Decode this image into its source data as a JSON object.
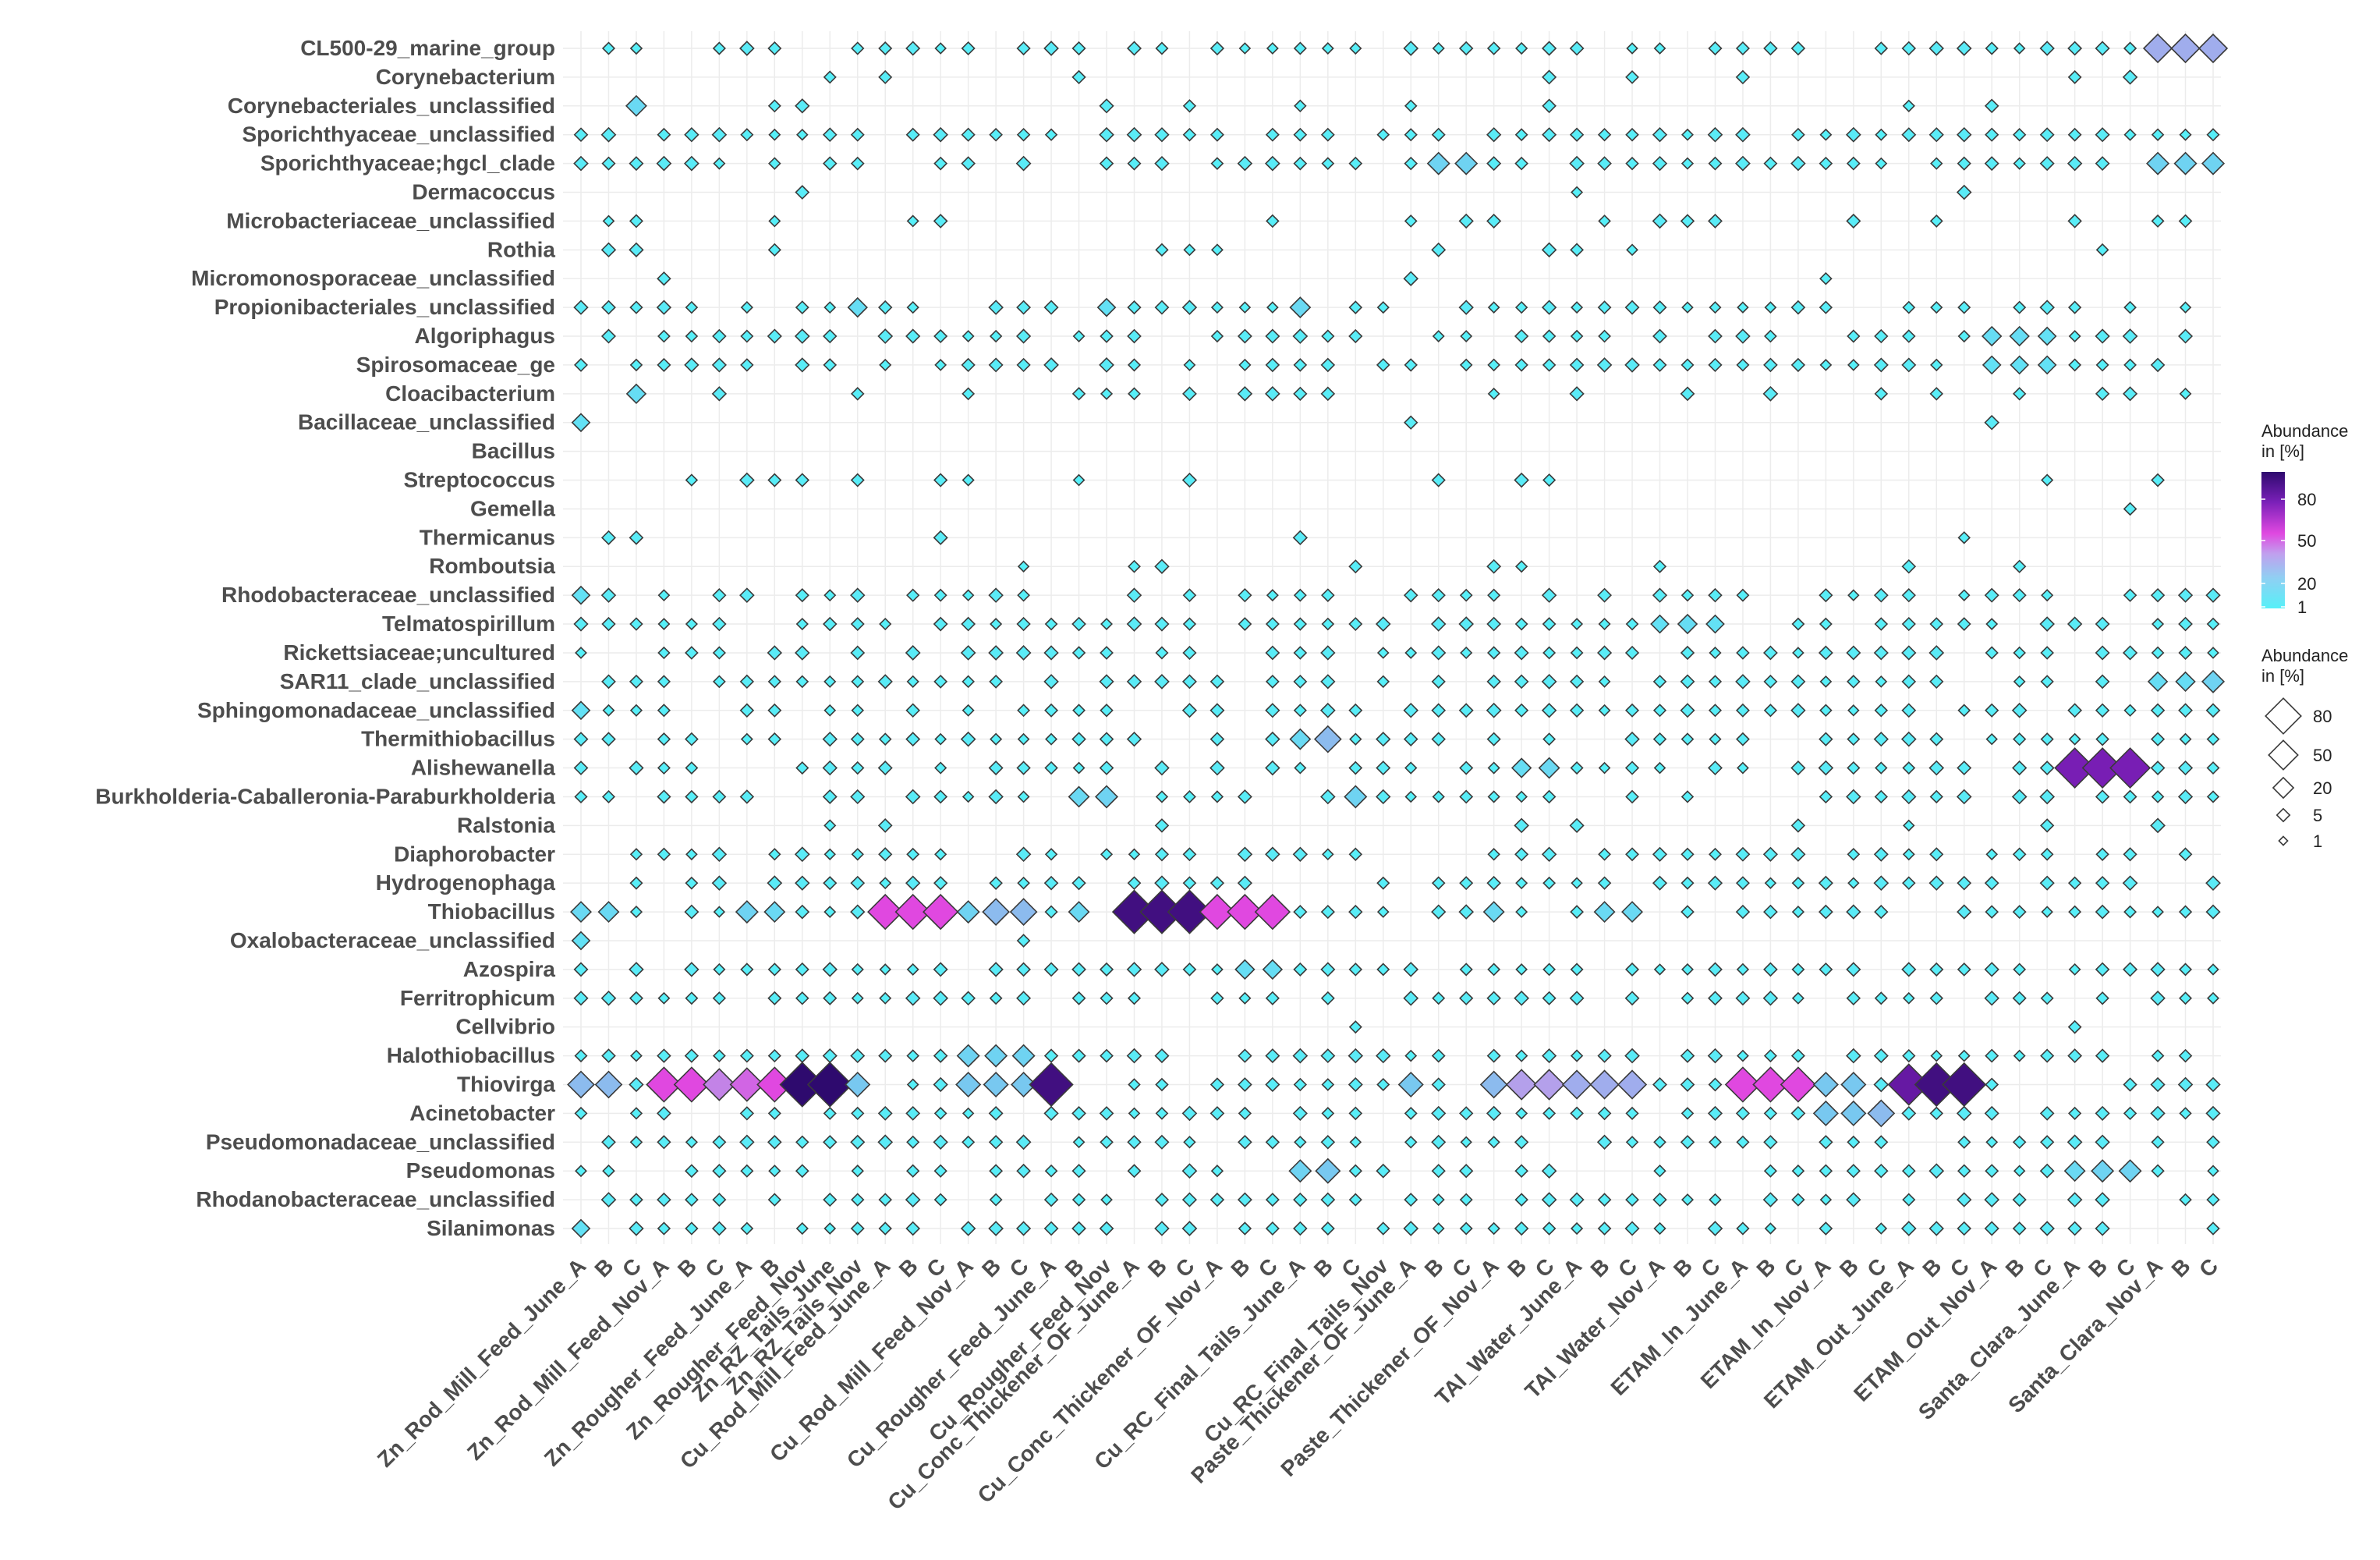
{
  "chart_data": {
    "type": "bubble-heatmap",
    "title": "",
    "xlabel": "",
    "ylabel": "",
    "taxa": [
      "CL500-29_marine_group",
      "Corynebacterium",
      "Corynebacteriales_unclassified",
      "Sporichthyaceae_unclassified",
      "Sporichthyaceae;hgcl_clade",
      "Dermacoccus",
      "Microbacteriaceae_unclassified",
      "Rothia",
      "Micromonosporaceae_unclassified",
      "Propionibacteriales_unclassified",
      "Algoriphagus",
      "Spirosomaceae_ge",
      "Cloacibacterium",
      "Bacillaceae_unclassified",
      "Bacillus",
      "Streptococcus",
      "Gemella",
      "Thermicanus",
      "Romboutsia",
      "Rhodobacteraceae_unclassified",
      "Telmatospirillum",
      "Rickettsiaceae;uncultured",
      "SAR11_clade_unclassified",
      "Sphingomonadaceae_unclassified",
      "Thermithiobacillus",
      "Alishewanella",
      "Burkholderia-Caballeronia-Paraburkholderia",
      "Ralstonia",
      "Diaphorobacter",
      "Hydrogenophaga",
      "Thiobacillus",
      "Oxalobacteraceae_unclassified",
      "Azospira",
      "Ferritrophicum",
      "Cellvibrio",
      "Halothiobacillus",
      "Thiovirga",
      "Acinetobacter",
      "Pseudomonadaceae_unclassified",
      "Pseudomonas",
      "Rhodanobacteraceae_unclassified",
      "Silanimonas"
    ],
    "x_tick_labels": [
      "Zn_Rod_Mill_Feed_June_A",
      "B",
      "C",
      "Zn_Rod_Mill_Feed_Nov_A",
      "B",
      "C",
      "Zn_Rougher_Feed_June_A",
      "B",
      "Zn_Rougher_Feed_Nov",
      "Zn_RZ_Tails_June",
      "Zn_RZ_Tails_Nov",
      "Cu_Rod_Mill_Feed_June_A",
      "B",
      "C",
      "Cu_Rod_Mill_Feed_Nov_A",
      "B",
      "C",
      "Cu_Rougher_Feed_June_A",
      "B",
      "Cu_Rougher_Feed_Nov",
      "Cu_Conc_Thickener_OF_June_A",
      "B",
      "C",
      "Cu_Conc_Thickener_OF_Nov_A",
      "B",
      "C",
      "Cu_RC_Final_Tails_June_A",
      "B",
      "C",
      "Cu_RC_Final_Tails_Nov",
      "Paste_Thickener_OF_June_A",
      "B",
      "C",
      "Paste_Thickener_OF_Nov_A",
      "B",
      "C",
      "TAI_Water_June_A",
      "B",
      "C",
      "TAI_Water_Nov_A",
      "B",
      "C",
      "ETAM_In_June_A",
      "B",
      "C",
      "ETAM_In_Nov_A",
      "B",
      "C",
      "ETAM_Out_June_A",
      "B",
      "C",
      "ETAM_Out_Nov_A",
      "B",
      "C",
      "Santa_Clara_June_A",
      "B",
      "C",
      "Santa_Clara_Nov_A",
      "B",
      "C"
    ],
    "highlights": [
      {
        "taxon": "CL500-29_marine_group",
        "sample": 57,
        "abundance": 30
      },
      {
        "taxon": "CL500-29_marine_group",
        "sample": 58,
        "abundance": 30
      },
      {
        "taxon": "CL500-29_marine_group",
        "sample": 59,
        "abundance": 30
      },
      {
        "taxon": "Sporichthyaceae;hgcl_clade",
        "sample": 31,
        "abundance": 15
      },
      {
        "taxon": "Sporichthyaceae;hgcl_clade",
        "sample": 32,
        "abundance": 15
      },
      {
        "taxon": "Sporichthyaceae;hgcl_clade",
        "sample": 57,
        "abundance": 15
      },
      {
        "taxon": "Sporichthyaceae;hgcl_clade",
        "sample": 58,
        "abundance": 15
      },
      {
        "taxon": "Sporichthyaceae;hgcl_clade",
        "sample": 59,
        "abundance": 15
      },
      {
        "taxon": "Corynebacteriales_unclassified",
        "sample": 2,
        "abundance": 12
      },
      {
        "taxon": "Propionibacteriales_unclassified",
        "sample": 10,
        "abundance": 10
      },
      {
        "taxon": "Propionibacteriales_unclassified",
        "sample": 19,
        "abundance": 8
      },
      {
        "taxon": "Propionibacteriales_unclassified",
        "sample": 26,
        "abundance": 12
      },
      {
        "taxon": "Algoriphagus",
        "sample": 51,
        "abundance": 10
      },
      {
        "taxon": "Algoriphagus",
        "sample": 52,
        "abundance": 10
      },
      {
        "taxon": "Algoriphagus",
        "sample": 53,
        "abundance": 8
      },
      {
        "taxon": "Spirosomaceae_ge",
        "sample": 51,
        "abundance": 8
      },
      {
        "taxon": "Spirosomaceae_ge",
        "sample": 52,
        "abundance": 8
      },
      {
        "taxon": "Spirosomaceae_ge",
        "sample": 53,
        "abundance": 8
      },
      {
        "taxon": "Cloacibacterium",
        "sample": 2,
        "abundance": 10
      },
      {
        "taxon": "Telmatospirillum",
        "sample": 39,
        "abundance": 8
      },
      {
        "taxon": "Telmatospirillum",
        "sample": 40,
        "abundance": 10
      },
      {
        "taxon": "Telmatospirillum",
        "sample": 41,
        "abundance": 8
      },
      {
        "taxon": "SAR11_clade_unclassified",
        "sample": 57,
        "abundance": 10
      },
      {
        "taxon": "SAR11_clade_unclassified",
        "sample": 58,
        "abundance": 10
      },
      {
        "taxon": "SAR11_clade_unclassified",
        "sample": 59,
        "abundance": 15
      },
      {
        "taxon": "Thermithiobacillus",
        "sample": 26,
        "abundance": 12
      },
      {
        "taxon": "Thermithiobacillus",
        "sample": 27,
        "abundance": 25
      },
      {
        "taxon": "Alishewanella",
        "sample": 54,
        "abundance": 70
      },
      {
        "taxon": "Alishewanella",
        "sample": 55,
        "abundance": 70
      },
      {
        "taxon": "Alishewanella",
        "sample": 56,
        "abundance": 70
      },
      {
        "taxon": "Alishewanella",
        "sample": 34,
        "abundance": 10
      },
      {
        "taxon": "Alishewanella",
        "sample": 35,
        "abundance": 12
      },
      {
        "taxon": "Burkholderia-Caballeronia-Paraburkholderia",
        "sample": 18,
        "abundance": 12
      },
      {
        "taxon": "Burkholderia-Caballeronia-Paraburkholderia",
        "sample": 19,
        "abundance": 15
      },
      {
        "taxon": "Burkholderia-Caballeronia-Paraburkholderia",
        "sample": 28,
        "abundance": 15
      },
      {
        "taxon": "Thiobacillus",
        "sample": 0,
        "abundance": 12
      },
      {
        "taxon": "Thiobacillus",
        "sample": 1,
        "abundance": 12
      },
      {
        "taxon": "Thiobacillus",
        "sample": 6,
        "abundance": 15
      },
      {
        "taxon": "Thiobacillus",
        "sample": 7,
        "abundance": 12
      },
      {
        "taxon": "Thiobacillus",
        "sample": 11,
        "abundance": 50
      },
      {
        "taxon": "Thiobacillus",
        "sample": 12,
        "abundance": 50
      },
      {
        "taxon": "Thiobacillus",
        "sample": 13,
        "abundance": 50
      },
      {
        "taxon": "Thiobacillus",
        "sample": 14,
        "abundance": 15
      },
      {
        "taxon": "Thiobacillus",
        "sample": 15,
        "abundance": 25
      },
      {
        "taxon": "Thiobacillus",
        "sample": 16,
        "abundance": 25
      },
      {
        "taxon": "Thiobacillus",
        "sample": 18,
        "abundance": 12
      },
      {
        "taxon": "Thiobacillus",
        "sample": 20,
        "abundance": 85
      },
      {
        "taxon": "Thiobacillus",
        "sample": 21,
        "abundance": 85
      },
      {
        "taxon": "Thiobacillus",
        "sample": 22,
        "abundance": 85
      },
      {
        "taxon": "Thiobacillus",
        "sample": 23,
        "abundance": 50
      },
      {
        "taxon": "Thiobacillus",
        "sample": 24,
        "abundance": 50
      },
      {
        "taxon": "Thiobacillus",
        "sample": 25,
        "abundance": 50
      },
      {
        "taxon": "Thiobacillus",
        "sample": 33,
        "abundance": 12
      },
      {
        "taxon": "Thiobacillus",
        "sample": 37,
        "abundance": 12
      },
      {
        "taxon": "Thiobacillus",
        "sample": 38,
        "abundance": 12
      },
      {
        "taxon": "Azospira",
        "sample": 24,
        "abundance": 10
      },
      {
        "taxon": "Azospira",
        "sample": 25,
        "abundance": 10
      },
      {
        "taxon": "Halothiobacillus",
        "sample": 14,
        "abundance": 15
      },
      {
        "taxon": "Halothiobacillus",
        "sample": 15,
        "abundance": 15
      },
      {
        "taxon": "Halothiobacillus",
        "sample": 16,
        "abundance": 15
      },
      {
        "taxon": "Thiovirga",
        "sample": 0,
        "abundance": 25
      },
      {
        "taxon": "Thiovirga",
        "sample": 1,
        "abundance": 25
      },
      {
        "taxon": "Thiovirga",
        "sample": 3,
        "abundance": 50
      },
      {
        "taxon": "Thiovirga",
        "sample": 4,
        "abundance": 50
      },
      {
        "taxon": "Thiovirga",
        "sample": 5,
        "abundance": 40
      },
      {
        "taxon": "Thiovirga",
        "sample": 6,
        "abundance": 45
      },
      {
        "taxon": "Thiovirga",
        "sample": 7,
        "abundance": 50
      },
      {
        "taxon": "Thiovirga",
        "sample": 8,
        "abundance": 90
      },
      {
        "taxon": "Thiovirga",
        "sample": 9,
        "abundance": 90
      },
      {
        "taxon": "Thiovirga",
        "sample": 10,
        "abundance": 20
      },
      {
        "taxon": "Thiovirga",
        "sample": 14,
        "abundance": 20
      },
      {
        "taxon": "Thiovirga",
        "sample": 15,
        "abundance": 20
      },
      {
        "taxon": "Thiovirga",
        "sample": 16,
        "abundance": 20
      },
      {
        "taxon": "Thiovirga",
        "sample": 17,
        "abundance": 85
      },
      {
        "taxon": "Thiovirga",
        "sample": 30,
        "abundance": 20
      },
      {
        "taxon": "Thiovirga",
        "sample": 33,
        "abundance": 25
      },
      {
        "taxon": "Thiovirga",
        "sample": 34,
        "abundance": 35
      },
      {
        "taxon": "Thiovirga",
        "sample": 35,
        "abundance": 35
      },
      {
        "taxon": "Thiovirga",
        "sample": 36,
        "abundance": 30
      },
      {
        "taxon": "Thiovirga",
        "sample": 37,
        "abundance": 30
      },
      {
        "taxon": "Thiovirga",
        "sample": 38,
        "abundance": 30
      },
      {
        "taxon": "Thiovirga",
        "sample": 42,
        "abundance": 50
      },
      {
        "taxon": "Thiovirga",
        "sample": 43,
        "abundance": 50
      },
      {
        "taxon": "Thiovirga",
        "sample": 44,
        "abundance": 50
      },
      {
        "taxon": "Thiovirga",
        "sample": 45,
        "abundance": 20
      },
      {
        "taxon": "Thiovirga",
        "sample": 46,
        "abundance": 20
      },
      {
        "taxon": "Thiovirga",
        "sample": 48,
        "abundance": 75
      },
      {
        "taxon": "Thiovirga",
        "sample": 49,
        "abundance": 85
      },
      {
        "taxon": "Thiovirga",
        "sample": 50,
        "abundance": 85
      },
      {
        "taxon": "Acinetobacter",
        "sample": 45,
        "abundance": 20
      },
      {
        "taxon": "Acinetobacter",
        "sample": 46,
        "abundance": 20
      },
      {
        "taxon": "Acinetobacter",
        "sample": 47,
        "abundance": 25
      },
      {
        "taxon": "Pseudomonas",
        "sample": 26,
        "abundance": 15
      },
      {
        "taxon": "Pseudomonas",
        "sample": 27,
        "abundance": 20
      },
      {
        "taxon": "Pseudomonas",
        "sample": 54,
        "abundance": 12
      },
      {
        "taxon": "Pseudomonas",
        "sample": 55,
        "abundance": 15
      },
      {
        "taxon": "Pseudomonas",
        "sample": 56,
        "abundance": 15
      },
      {
        "taxon": "Bacillaceae_unclassified",
        "sample": 0,
        "abundance": 8
      },
      {
        "taxon": "Oxalobacteraceae_unclassified",
        "sample": 0,
        "abundance": 8
      },
      {
        "taxon": "Silanimonas",
        "sample": 0,
        "abundance": 8
      },
      {
        "taxon": "Rhodobacteraceae_unclassified",
        "sample": 0,
        "abundance": 8
      },
      {
        "taxon": "Sphingomonadaceae_unclassified",
        "sample": 0,
        "abundance": 8
      }
    ],
    "background_abundance": 1,
    "color_legend": {
      "title": "Abundance\nin [%]",
      "ticks": [
        80,
        50,
        20,
        1
      ],
      "range": [
        1,
        90
      ],
      "colors": [
        "#56f0f8",
        "#a8a8f0",
        "#e048e0",
        "#6a18b0",
        "#2e0a6e"
      ]
    },
    "size_legend": {
      "title": "Abundance\nin [%]",
      "ticks": [
        80,
        50,
        20,
        5,
        1
      ]
    },
    "legend_position": "right"
  }
}
